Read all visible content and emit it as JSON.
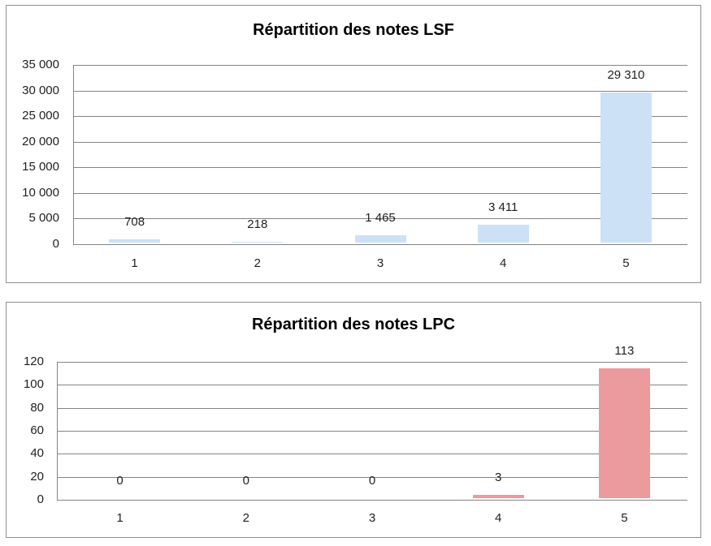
{
  "colors": {
    "lsf_bar": "#CCE1F5",
    "lpc_bar": "#EB9A9E",
    "gridline": "#848484",
    "axis": "#848484",
    "frame": "#8F8F8F",
    "tick_text": "#1F1F1F",
    "title_text": "#000000",
    "background": "#FFFFFF"
  },
  "chart_data": [
    {
      "type": "bar",
      "title": "Répartition des notes LSF",
      "categories": [
        "1",
        "2",
        "3",
        "4",
        "5"
      ],
      "values": [
        708,
        218,
        1465,
        3411,
        29310
      ],
      "value_labels": [
        "708",
        "218",
        "1 465",
        "3 411",
        "29 310"
      ],
      "xlabel": "",
      "ylabel": "",
      "ylim": [
        0,
        35000
      ],
      "ytick_step": 5000,
      "ytick_labels": [
        "0",
        "5 000",
        "10 000",
        "15 000",
        "20 000",
        "25 000",
        "30 000",
        "35 000"
      ],
      "grid": "horizontal",
      "legend": "none",
      "bar_color": "#CCE1F5"
    },
    {
      "type": "bar",
      "title": "Répartition des notes LPC",
      "categories": [
        "1",
        "2",
        "3",
        "4",
        "5"
      ],
      "values": [
        0,
        0,
        0,
        3,
        113
      ],
      "value_labels": [
        "0",
        "0",
        "0",
        "3",
        "113"
      ],
      "xlabel": "",
      "ylabel": "",
      "ylim": [
        0,
        120
      ],
      "ytick_step": 20,
      "ytick_labels": [
        "0",
        "20",
        "40",
        "60",
        "80",
        "100",
        "120"
      ],
      "grid": "horizontal",
      "legend": "none",
      "bar_color": "#EB9A9E"
    }
  ]
}
